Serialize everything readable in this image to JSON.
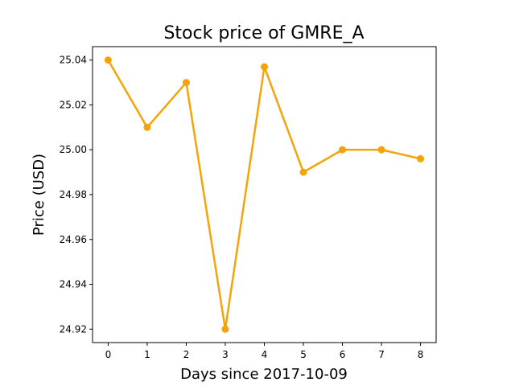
{
  "chart_data": {
    "type": "line",
    "title": "Stock price of GMRE_A",
    "xlabel": "Days since 2017-10-09",
    "ylabel": "Price (USD)",
    "x": [
      0,
      1,
      2,
      3,
      4,
      5,
      6,
      7,
      8
    ],
    "series": [
      {
        "values": [
          25.04,
          25.01,
          25.03,
          24.92,
          25.037,
          24.99,
          25.0,
          25.0,
          24.996
        ],
        "color": "#f5a30a"
      }
    ],
    "xticks": [
      0,
      1,
      2,
      3,
      4,
      5,
      6,
      7,
      8
    ],
    "yticks": [
      24.92,
      24.94,
      24.96,
      24.98,
      25.0,
      25.02,
      25.04
    ],
    "xlim": [
      -0.4,
      8.4
    ],
    "ylim": [
      24.914,
      25.046
    ],
    "grid": false,
    "legend": "none"
  }
}
